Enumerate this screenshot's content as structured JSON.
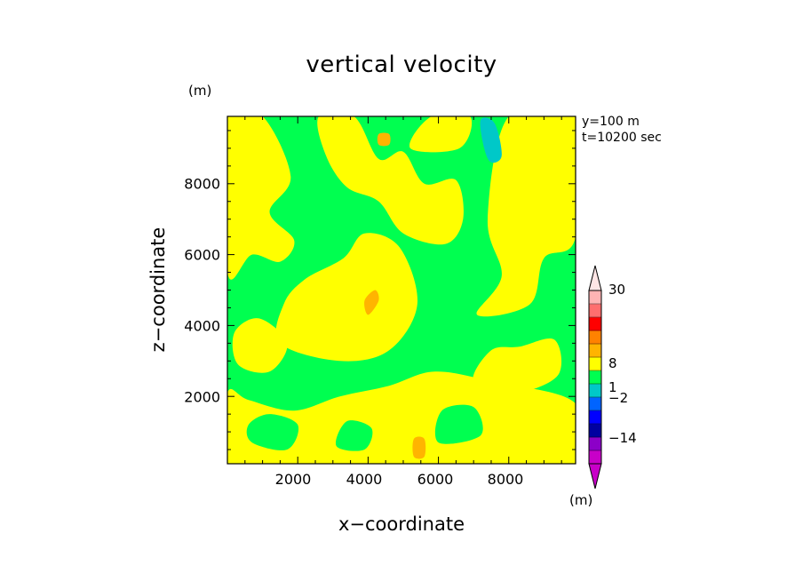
{
  "chart_data": {
    "type": "heatmap",
    "title": "vertical velocity",
    "xlabel": "x−coordinate",
    "ylabel": "z−coordinate",
    "y_unit": "(m)",
    "annotation": {
      "y_position": "y=100 m",
      "time": "t=10200 sec"
    },
    "xlim": [
      0,
      9900
    ],
    "ylim": [
      100,
      9900
    ],
    "xticks": [
      "2000",
      "4000",
      "6000",
      "8000"
    ],
    "yticks": [
      "2000",
      "4000",
      "6000",
      "8000"
    ],
    "colorbar": {
      "unit": "(m)",
      "labels": [
        {
          "text": "30",
          "value": 30
        },
        {
          "text": "8",
          "value": 8
        },
        {
          "text": "1",
          "value": 1
        },
        {
          "text": "−2",
          "value": -2
        },
        {
          "text": "−14",
          "value": -14
        }
      ],
      "colors": [
        "#c800c8",
        "#8c00c8",
        "#0000a0",
        "#0000ff",
        "#0064ff",
        "#00c8c8",
        "#00ff50",
        "#ffff00",
        "#ffb400",
        "#ff8200",
        "#ff0000",
        "#ff6e6e",
        "#ffb4b4"
      ]
    },
    "background_color": "#00ff50",
    "regions": [
      {
        "level": "0 to 1",
        "color": "#ffff00",
        "points": [
          [
            0,
            100
          ],
          [
            9900,
            100
          ],
          [
            9900,
            1800
          ],
          [
            7600,
            2400
          ],
          [
            5900,
            2700
          ],
          [
            4600,
            2300
          ],
          [
            3200,
            2000
          ],
          [
            1900,
            1600
          ],
          [
            600,
            1900
          ],
          [
            0,
            2100
          ]
        ]
      },
      {
        "level": "0 to 1",
        "color": "#ffff00",
        "points": [
          [
            1500,
            3500
          ],
          [
            3200,
            3000
          ],
          [
            4600,
            3300
          ],
          [
            5400,
            4600
          ],
          [
            4900,
            6200
          ],
          [
            3900,
            6600
          ],
          [
            3300,
            5900
          ],
          [
            2200,
            5300
          ],
          [
            1600,
            4600
          ]
        ]
      },
      {
        "level": "0 to 1",
        "color": "#ffff00",
        "points": [
          [
            0,
            5500
          ],
          [
            700,
            6000
          ],
          [
            1500,
            5800
          ],
          [
            1900,
            6400
          ],
          [
            1200,
            7200
          ],
          [
            1800,
            8200
          ],
          [
            1000,
            9900
          ],
          [
            0,
            9900
          ]
        ]
      },
      {
        "level": "0 to 1",
        "color": "#ffff00",
        "points": [
          [
            2600,
            9900
          ],
          [
            3600,
            9900
          ],
          [
            4300,
            8700
          ],
          [
            5000,
            8900
          ],
          [
            5600,
            8000
          ],
          [
            6500,
            8100
          ],
          [
            6700,
            7000
          ],
          [
            6200,
            6300
          ],
          [
            5000,
            6600
          ],
          [
            4300,
            7500
          ],
          [
            3400,
            7900
          ],
          [
            2800,
            8800
          ]
        ]
      },
      {
        "level": "0 to 1",
        "color": "#ffff00",
        "points": [
          [
            7100,
            4300
          ],
          [
            7800,
            5400
          ],
          [
            7400,
            7000
          ],
          [
            8000,
            9900
          ],
          [
            9900,
            9900
          ],
          [
            9900,
            6500
          ],
          [
            9000,
            5900
          ],
          [
            8600,
            4600
          ]
        ]
      },
      {
        "level": "0 to 1",
        "color": "#ffff00",
        "points": [
          [
            7000,
            2400
          ],
          [
            8200,
            2100
          ],
          [
            9400,
            2600
          ],
          [
            9300,
            3600
          ],
          [
            8300,
            3400
          ],
          [
            7500,
            3300
          ]
        ]
      },
      {
        "level": "0 to 1",
        "color": "#ffff00",
        "points": [
          [
            300,
            2900
          ],
          [
            1200,
            2700
          ],
          [
            1700,
            3500
          ],
          [
            900,
            4200
          ],
          [
            200,
            3800
          ]
        ]
      },
      {
        "level": "0 to 1",
        "color": "#ffff00",
        "points": [
          [
            5200,
            9000
          ],
          [
            5800,
            9900
          ],
          [
            6900,
            9900
          ],
          [
            6600,
            9000
          ]
        ]
      },
      {
        "level": "-1 to 0",
        "color": "#00ff50",
        "points": [
          [
            700,
            700
          ],
          [
            1700,
            500
          ],
          [
            2000,
            1200
          ],
          [
            1200,
            1500
          ],
          [
            600,
            1200
          ]
        ]
      },
      {
        "level": "-1 to 0",
        "color": "#00ff50",
        "points": [
          [
            6000,
            700
          ],
          [
            7200,
            900
          ],
          [
            7000,
            1700
          ],
          [
            6100,
            1600
          ]
        ]
      },
      {
        "level": "-1 to 0",
        "color": "#00ff50",
        "points": [
          [
            3100,
            600
          ],
          [
            3900,
            500
          ],
          [
            4100,
            1100
          ],
          [
            3400,
            1300
          ]
        ]
      },
      {
        "level": "1 to 2",
        "color": "#ffb400",
        "points": [
          [
            5300,
            300
          ],
          [
            5600,
            300
          ],
          [
            5600,
            800
          ],
          [
            5300,
            800
          ]
        ]
      },
      {
        "level": "1 to 2",
        "color": "#ffb400",
        "points": [
          [
            4000,
            4300
          ],
          [
            4300,
            4700
          ],
          [
            4200,
            5000
          ],
          [
            3900,
            4700
          ]
        ]
      },
      {
        "level": "1 to 2",
        "color": "#ffb400",
        "points": [
          [
            4300,
            9100
          ],
          [
            4600,
            9100
          ],
          [
            4600,
            9400
          ],
          [
            4300,
            9400
          ]
        ]
      },
      {
        "level": "-2 to -1",
        "color": "#00c8c8",
        "points": [
          [
            7200,
            9800
          ],
          [
            7600,
            9700
          ],
          [
            7800,
            8800
          ],
          [
            7500,
            8600
          ],
          [
            7300,
            9000
          ]
        ]
      }
    ]
  }
}
